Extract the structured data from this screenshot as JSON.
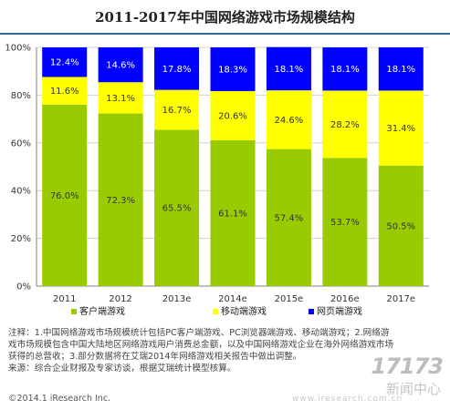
{
  "title": "2011-2017年中国网络游戏市场规模结构",
  "chart_data": {
    "type": "bar",
    "stacked": true,
    "percent": true,
    "categories": [
      "2011",
      "2012",
      "2013e",
      "2014e",
      "2015e",
      "2016e",
      "2017e"
    ],
    "series": [
      {
        "name": "客户端游戏",
        "color": "#99cc00",
        "values": [
          76.0,
          72.3,
          65.5,
          61.1,
          57.4,
          53.7,
          50.5
        ],
        "labels": [
          "76.0%",
          "72.3%",
          "65.5%",
          "61.1%",
          "57.4%",
          "53.7%",
          "50.5%"
        ]
      },
      {
        "name": "移动端游戏",
        "color": "#ffff00",
        "values": [
          11.6,
          13.1,
          16.7,
          20.6,
          24.6,
          28.2,
          31.4
        ],
        "labels": [
          "11.6%",
          "13.1%",
          "16.7%",
          "20.6%",
          "24.6%",
          "28.2%",
          "31.4%"
        ]
      },
      {
        "name": "网页端游戏",
        "color": "#0000ff",
        "values": [
          12.4,
          14.6,
          17.8,
          18.3,
          18.1,
          18.1,
          18.1
        ],
        "labels": [
          "12.4%",
          "14.6%",
          "17.8%",
          "18.3%",
          "18.1%",
          "18.1%",
          "18.1%"
        ]
      }
    ],
    "y_ticks": [
      "0%",
      "20%",
      "40%",
      "60%",
      "80%",
      "100%"
    ],
    "ylim": [
      0,
      100
    ],
    "legend": "bottom",
    "grid": true
  },
  "notes": [
    "注释：1.中国网络游戏市场规模统计包括PC客户端游戏、PC浏览器端游戏、移动端游戏；2.网络游",
    "戏市场规模包含中国大陆地区网络游戏用户消费总金额，以及中国网络游戏企业在海外网络游戏市场",
    "获得的总营收；3.部分数据将在艾瑞2014年网络游戏相关报告中做出调整。",
    "来源：综合企业财报及专家访谈，根据艾瑞统计模型核算。"
  ],
  "copyright": "©2014.1 iResearch Inc.",
  "watermark": "www.iresearch.com.cn",
  "logo": {
    "mark": "17173",
    "text": "新闻中心"
  }
}
